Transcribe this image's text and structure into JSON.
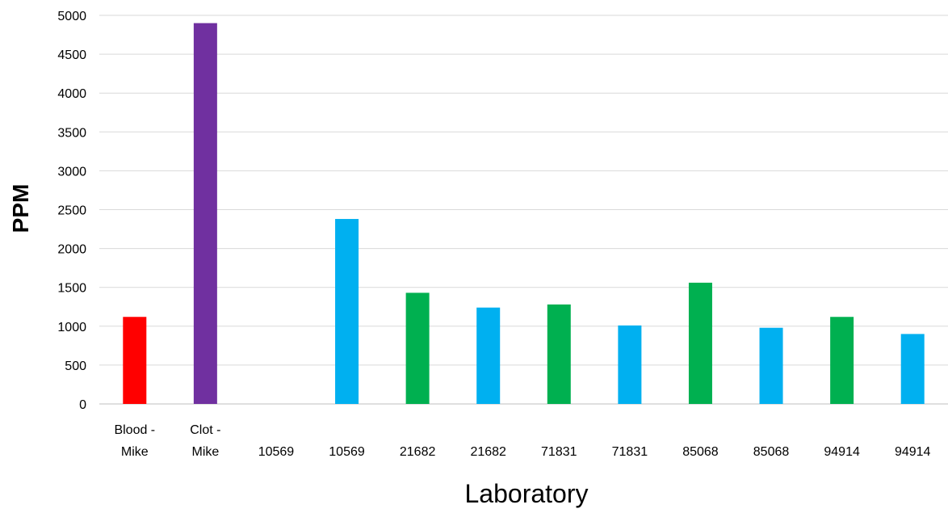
{
  "chart_data": {
    "type": "bar",
    "title": "",
    "xlabel": "Laboratory",
    "ylabel": "PPM",
    "ylim": [
      0,
      5000
    ],
    "yticks": [
      0,
      500,
      1000,
      1500,
      2000,
      2500,
      3000,
      3500,
      4000,
      4500,
      5000
    ],
    "grid": true,
    "legend": "none",
    "categories": [
      [
        "Blood -",
        "Mike"
      ],
      [
        "Clot -",
        "Mike"
      ],
      [
        "",
        "10569"
      ],
      [
        "",
        "10569"
      ],
      [
        "",
        "21682"
      ],
      [
        "",
        "21682"
      ],
      [
        "",
        "71831"
      ],
      [
        "",
        "71831"
      ],
      [
        "",
        "85068"
      ],
      [
        "",
        "85068"
      ],
      [
        "",
        "94914"
      ],
      [
        "",
        "94914"
      ]
    ],
    "values": [
      1120,
      4900,
      0,
      2380,
      1430,
      1240,
      1280,
      1010,
      1560,
      980,
      1120,
      900
    ],
    "colors": [
      "#ff0000",
      "#7030a0",
      "#00b0f0",
      "#00b0f0",
      "#00b050",
      "#00b0f0",
      "#00b050",
      "#00b0f0",
      "#00b050",
      "#00b0f0",
      "#00b050",
      "#00b0f0"
    ]
  }
}
